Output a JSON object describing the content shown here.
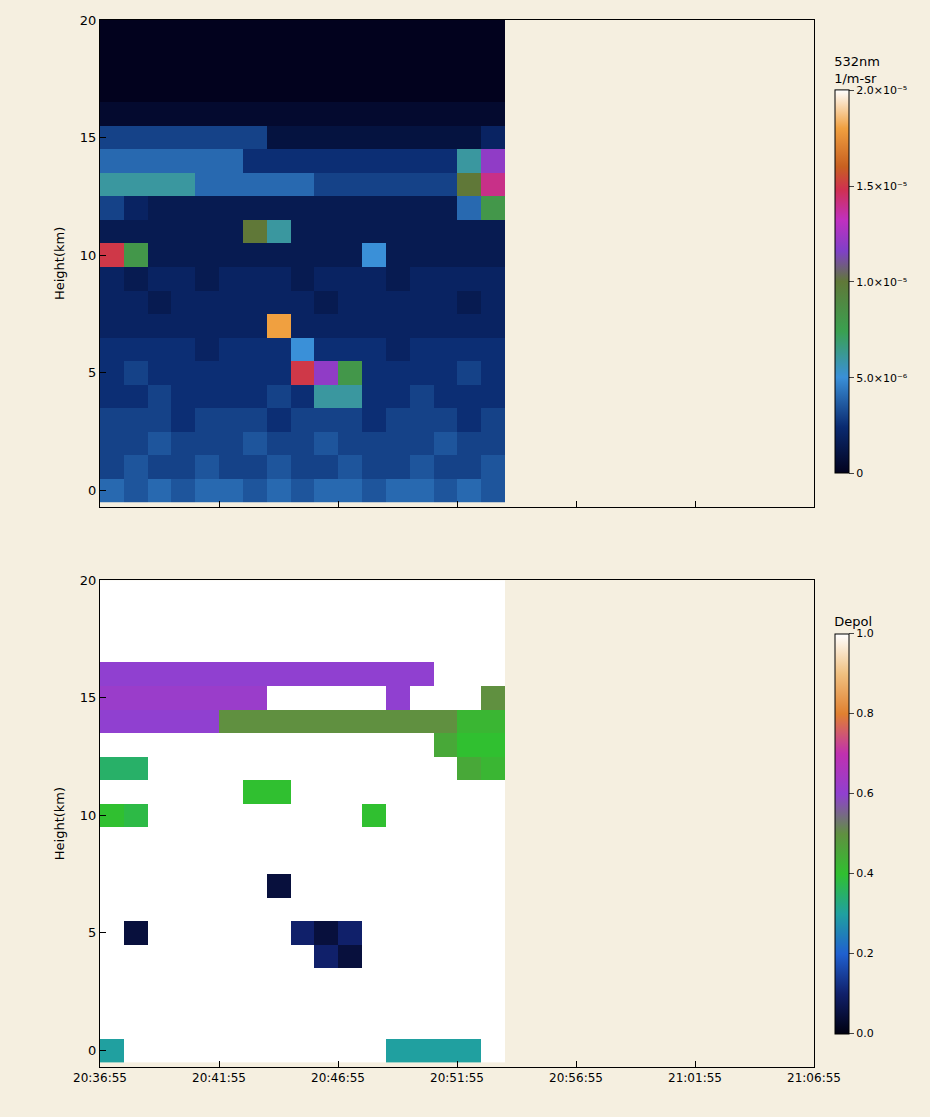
{
  "chart_data": [
    {
      "type": "heatmap",
      "ylabel": "Height(km)",
      "colorbar_title": "532nm 1/m-sr",
      "colorbar_range": [
        0,
        2e-05
      ],
      "colorbar_ticks": [
        0,
        {
          "value": 5e-06,
          "label": "5.0×10⁻⁶"
        },
        {
          "value": 1e-05,
          "label": "1.0×10⁻⁵"
        },
        {
          "value": 1.5e-05,
          "label": "1.5×10⁻⁵"
        },
        {
          "value": 2e-05,
          "label": "2.0×10⁻⁵"
        }
      ],
      "xlim": [
        74215,
        76015
      ],
      "xticks": [
        {
          "value": 74215,
          "label": "20:36:55"
        },
        {
          "value": 74515,
          "label": "20:41:55"
        },
        {
          "value": 74815,
          "label": "20:46:55"
        },
        {
          "value": 75115,
          "label": "20:51:55"
        },
        {
          "value": 75415,
          "label": "20:56:55"
        },
        {
          "value": 75715,
          "label": "21:01:55"
        },
        {
          "value": 76015,
          "label": "21:06:55"
        }
      ],
      "ylim": [
        -0.7,
        20
      ],
      "yticks": [
        0,
        5,
        10,
        15,
        20
      ],
      "grid": false,
      "tick_labels": "y",
      "x": [
        74245,
        74305,
        74365,
        74425,
        74485,
        74545,
        74605,
        74665,
        74725,
        74785,
        74845,
        74905,
        74965,
        75025,
        75085,
        75145,
        75205
      ],
      "y": [
        0,
        1,
        2,
        3,
        4,
        5,
        6,
        7,
        8,
        9,
        10,
        11,
        12,
        13,
        14,
        15,
        16,
        17,
        18,
        19,
        20
      ],
      "z": [
        [
          4e-06,
          3.5e-06,
          4e-06,
          3.5e-06,
          4e-06,
          4e-06,
          3.5e-06,
          4e-06,
          3.5e-06,
          4e-06,
          4e-06,
          3.5e-06,
          4e-06,
          4e-06,
          3.5e-06,
          4e-06,
          3.5e-06
        ],
        [
          3e-06,
          3.5e-06,
          3e-06,
          3e-06,
          3.5e-06,
          3e-06,
          3e-06,
          3.5e-06,
          3e-06,
          3e-06,
          3.5e-06,
          3e-06,
          3e-06,
          3.5e-06,
          3e-06,
          3e-06,
          3.5e-06
        ],
        [
          3e-06,
          3e-06,
          3.5e-06,
          3e-06,
          3e-06,
          3e-06,
          3.5e-06,
          3e-06,
          3e-06,
          3.5e-06,
          3e-06,
          3e-06,
          3e-06,
          3e-06,
          3.5e-06,
          3e-06,
          3e-06
        ],
        [
          3e-06,
          3e-06,
          3e-06,
          2.5e-06,
          3e-06,
          3e-06,
          3e-06,
          2.5e-06,
          3e-06,
          3e-06,
          3e-06,
          2.5e-06,
          3e-06,
          3e-06,
          3e-06,
          2.5e-06,
          3e-06
        ],
        [
          2.5e-06,
          2.5e-06,
          3e-06,
          2.5e-06,
          2.5e-06,
          2.5e-06,
          2.5e-06,
          3e-06,
          2.5e-06,
          6e-06,
          6e-06,
          2.5e-06,
          2.5e-06,
          3e-06,
          2.5e-06,
          2.5e-06,
          2.5e-06
        ],
        [
          2.5e-06,
          3e-06,
          2.5e-06,
          2.5e-06,
          2.5e-06,
          2.5e-06,
          2.5e-06,
          2.5e-06,
          1.5e-05,
          1.2e-05,
          8e-06,
          2.5e-06,
          2.5e-06,
          2.5e-06,
          2.5e-06,
          3e-06,
          2.5e-06
        ],
        [
          2.5e-06,
          2.5e-06,
          2.5e-06,
          2.5e-06,
          2e-06,
          2.5e-06,
          2.5e-06,
          2.5e-06,
          5e-06,
          2.5e-06,
          2.5e-06,
          2.5e-06,
          2e-06,
          2.5e-06,
          2.5e-06,
          2.5e-06,
          2.5e-06
        ],
        [
          2e-06,
          2e-06,
          2e-06,
          2e-06,
          2e-06,
          2e-06,
          2e-06,
          1.8e-05,
          2e-06,
          2e-06,
          2e-06,
          2e-06,
          2e-06,
          2e-06,
          2e-06,
          2e-06,
          2e-06
        ],
        [
          2e-06,
          2e-06,
          1.5e-06,
          2e-06,
          2e-06,
          2e-06,
          2e-06,
          2e-06,
          2e-06,
          1.5e-06,
          2e-06,
          2e-06,
          2e-06,
          2e-06,
          2e-06,
          1.5e-06,
          2e-06
        ],
        [
          2e-06,
          1.5e-06,
          2e-06,
          2e-06,
          1.5e-06,
          2e-06,
          2e-06,
          2e-06,
          1.5e-06,
          2e-06,
          2e-06,
          2e-06,
          1.5e-06,
          2e-06,
          2e-06,
          2e-06,
          2e-06
        ],
        [
          1.5e-05,
          8e-06,
          1.5e-06,
          1.5e-06,
          1.5e-06,
          1.5e-06,
          1.5e-06,
          1.5e-06,
          1.5e-06,
          1.5e-06,
          1.5e-06,
          5e-06,
          1.5e-06,
          1.5e-06,
          1.5e-06,
          1.5e-06,
          1.5e-06
        ],
        [
          1.5e-06,
          1.5e-06,
          1.5e-06,
          1.5e-06,
          1.5e-06,
          1.5e-06,
          1e-05,
          6e-06,
          1.5e-06,
          1.5e-06,
          1.5e-06,
          1.5e-06,
          1.5e-06,
          1.5e-06,
          1.5e-06,
          1.5e-06,
          1.5e-06
        ],
        [
          3e-06,
          2e-06,
          1.5e-06,
          1.5e-06,
          1.5e-06,
          1.5e-06,
          1.5e-06,
          1.5e-06,
          1.5e-06,
          1.5e-06,
          1.5e-06,
          1.5e-06,
          1.5e-06,
          1.5e-06,
          1.5e-06,
          4e-06,
          8e-06
        ],
        [
          6e-06,
          6e-06,
          6e-06,
          6e-06,
          4e-06,
          4e-06,
          4e-06,
          4e-06,
          4e-06,
          3e-06,
          3e-06,
          3e-06,
          3e-06,
          3e-06,
          3e-06,
          1e-05,
          1.4e-05
        ],
        [
          4e-06,
          4e-06,
          4e-06,
          4e-06,
          4e-06,
          4e-06,
          2.5e-06,
          2.5e-06,
          2.5e-06,
          2.5e-06,
          2.5e-06,
          2.5e-06,
          2.5e-06,
          2.5e-06,
          2.5e-06,
          6e-06,
          1.2e-05
        ],
        [
          3e-06,
          3e-06,
          3e-06,
          3e-06,
          3e-06,
          3e-06,
          3e-06,
          1e-06,
          1e-06,
          1e-06,
          1e-06,
          1e-06,
          1e-06,
          1e-06,
          1e-06,
          1e-06,
          2e-06
        ],
        [
          5e-07,
          5e-07,
          5e-07,
          5e-07,
          5e-07,
          5e-07,
          5e-07,
          5e-07,
          5e-07,
          5e-07,
          5e-07,
          5e-07,
          5e-07,
          5e-07,
          5e-07,
          5e-07,
          5e-07
        ],
        [
          0,
          0,
          0,
          0,
          0,
          0,
          0,
          0,
          0,
          0,
          0,
          0,
          0,
          0,
          0,
          0,
          0
        ],
        [
          0,
          0,
          0,
          0,
          0,
          0,
          0,
          0,
          0,
          0,
          0,
          0,
          0,
          0,
          0,
          0,
          0
        ],
        [
          0,
          0,
          0,
          0,
          0,
          0,
          0,
          0,
          0,
          0,
          0,
          0,
          0,
          0,
          0,
          0,
          0
        ],
        [
          0,
          0,
          0,
          0,
          0,
          0,
          0,
          0,
          0,
          0,
          0,
          0,
          0,
          0,
          0,
          0,
          0
        ]
      ]
    },
    {
      "type": "heatmap",
      "ylabel": "Height(km)",
      "colorbar_title": "Depol",
      "colorbar_range": [
        0,
        1
      ],
      "colorbar_ticks": [
        {
          "value": 0,
          "label": "0.0"
        },
        0.2,
        0.4,
        0.6,
        0.8,
        {
          "value": 1,
          "label": "1.0"
        }
      ],
      "xlim": [
        74215,
        76015
      ],
      "xticks": [
        {
          "value": 74215,
          "label": "20:36:55"
        },
        {
          "value": 74515,
          "label": "20:41:55"
        },
        {
          "value": 74815,
          "label": "20:46:55"
        },
        {
          "value": 75115,
          "label": "20:51:55"
        },
        {
          "value": 75415,
          "label": "20:56:55"
        },
        {
          "value": 75715,
          "label": "21:01:55"
        },
        {
          "value": 76015,
          "label": "21:06:55"
        }
      ],
      "ylim": [
        -0.7,
        20
      ],
      "yticks": [
        0,
        5,
        10,
        15,
        20
      ],
      "grid": false,
      "x": [
        74245,
        74305,
        74365,
        74425,
        74485,
        74545,
        74605,
        74665,
        74725,
        74785,
        74845,
        74905,
        74965,
        75025,
        75085,
        75145,
        75205
      ],
      "y": [
        0,
        1,
        2,
        3,
        4,
        5,
        6,
        7,
        8,
        9,
        10,
        11,
        12,
        13,
        14,
        15,
        16,
        17,
        18,
        19,
        20
      ],
      "z": [
        [
          0.3,
          1,
          1,
          1,
          1,
          1,
          1,
          1,
          1,
          1,
          1,
          1,
          0.3,
          0.3,
          0.3,
          0.3,
          1
        ],
        [
          1,
          1,
          1,
          1,
          1,
          1,
          1,
          1,
          1,
          1,
          1,
          1,
          1,
          1,
          1,
          1,
          1
        ],
        [
          1,
          1,
          1,
          1,
          1,
          1,
          1,
          1,
          1,
          1,
          1,
          1,
          1,
          1,
          1,
          1,
          1
        ],
        [
          1,
          1,
          1,
          1,
          1,
          1,
          1,
          1,
          1,
          1,
          1,
          1,
          1,
          1,
          1,
          1,
          1
        ],
        [
          1,
          1,
          1,
          1,
          1,
          1,
          1,
          1,
          1,
          0.1,
          0.05,
          1,
          1,
          1,
          1,
          1,
          1
        ],
        [
          1,
          0.05,
          1,
          1,
          1,
          1,
          1,
          1,
          0.1,
          0.05,
          0.1,
          1,
          1,
          1,
          1,
          1,
          1
        ],
        [
          1,
          1,
          1,
          1,
          1,
          1,
          1,
          1,
          1,
          1,
          1,
          1,
          1,
          1,
          1,
          1,
          1
        ],
        [
          1,
          1,
          1,
          1,
          1,
          1,
          1,
          0.05,
          1,
          1,
          1,
          1,
          1,
          1,
          1,
          1,
          1
        ],
        [
          1,
          1,
          1,
          1,
          1,
          1,
          1,
          1,
          1,
          1,
          1,
          1,
          1,
          1,
          1,
          1,
          1
        ],
        [
          1,
          1,
          1,
          1,
          1,
          1,
          1,
          1,
          1,
          1,
          1,
          1,
          1,
          1,
          1,
          1,
          1
        ],
        [
          0.4,
          0.38,
          1,
          1,
          1,
          1,
          1,
          1,
          1,
          1,
          1,
          0.4,
          1,
          1,
          1,
          1,
          1
        ],
        [
          1,
          1,
          1,
          1,
          1,
          1,
          0.4,
          0.4,
          1,
          1,
          1,
          1,
          1,
          1,
          1,
          1,
          1
        ],
        [
          0.35,
          0.35,
          1,
          1,
          1,
          1,
          1,
          1,
          1,
          1,
          1,
          1,
          1,
          1,
          1,
          0.45,
          0.42
        ],
        [
          1,
          1,
          1,
          1,
          1,
          1,
          1,
          1,
          1,
          1,
          1,
          1,
          1,
          1,
          0.45,
          0.4,
          0.4
        ],
        [
          0.6,
          0.6,
          0.6,
          0.6,
          0.6,
          0.5,
          0.5,
          0.5,
          0.5,
          0.5,
          0.5,
          0.5,
          0.5,
          0.5,
          0.5,
          0.42,
          0.42
        ],
        [
          0.62,
          0.62,
          0.62,
          0.62,
          0.62,
          0.62,
          0.62,
          1,
          1,
          1,
          1,
          1,
          0.6,
          1,
          1,
          1,
          0.5
        ],
        [
          0.6,
          0.6,
          0.6,
          0.6,
          0.6,
          0.6,
          0.6,
          0.6,
          0.6,
          0.6,
          0.6,
          0.6,
          0.6,
          0.6,
          1,
          1,
          1
        ],
        [
          1,
          1,
          1,
          1,
          1,
          1,
          1,
          1,
          1,
          1,
          1,
          1,
          1,
          1,
          1,
          1,
          1
        ],
        [
          1,
          1,
          1,
          1,
          1,
          1,
          1,
          1,
          1,
          1,
          1,
          1,
          1,
          1,
          1,
          1,
          1
        ],
        [
          1,
          1,
          1,
          1,
          1,
          1,
          1,
          1,
          1,
          1,
          1,
          1,
          1,
          1,
          1,
          1,
          1
        ],
        [
          1,
          1,
          1,
          1,
          1,
          1,
          1,
          1,
          1,
          1,
          1,
          1,
          1,
          1,
          1,
          1,
          1
        ]
      ]
    }
  ]
}
